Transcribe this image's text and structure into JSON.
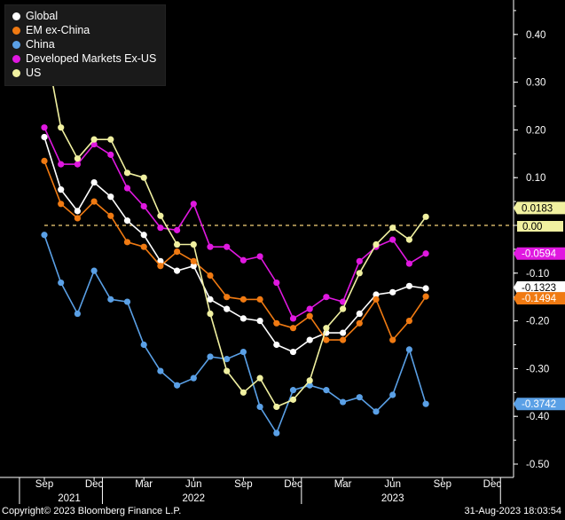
{
  "chart_data": {
    "type": "line",
    "x": [
      "Sep 2021",
      "Oct 2021",
      "Nov 2021",
      "Dec 2021",
      "Jan 2022",
      "Feb 2022",
      "Mar 2022",
      "Apr 2022",
      "May 2022",
      "Jun 2022",
      "Jul 2022",
      "Aug 2022",
      "Sep 2022",
      "Oct 2022",
      "Nov 2022",
      "Dec 2022",
      "Jan 2023",
      "Feb 2023",
      "Mar 2023",
      "Apr 2023",
      "May 2023",
      "Jun 2023",
      "Jul 2023",
      "Aug 2023"
    ],
    "x_ticks": [
      {
        "label": "Sep",
        "index": 0
      },
      {
        "label": "Dec",
        "index": 3
      },
      {
        "label": "Mar",
        "index": 6
      },
      {
        "label": "Jun",
        "index": 9
      },
      {
        "label": "Sep",
        "index": 12
      },
      {
        "label": "Dec",
        "index": 15
      },
      {
        "label": "Mar",
        "index": 18
      },
      {
        "label": "Jun",
        "index": 21
      },
      {
        "label": "Sep",
        "index": 24
      },
      {
        "label": "Dec",
        "index": 27
      }
    ],
    "year_labels": [
      {
        "label": "2021",
        "index": 1.5
      },
      {
        "label": "2022",
        "index": 9
      },
      {
        "label": "2023",
        "index": 21
      }
    ],
    "ylim": [
      -0.52,
      0.47
    ],
    "yticks": [
      0.4,
      0.3,
      0.2,
      0.1,
      0.0,
      -0.1,
      -0.2,
      -0.3,
      -0.4,
      -0.5
    ],
    "ytick_labels": [
      "0.40",
      "0.30",
      "0.20",
      "0.10",
      "0.00",
      "-0.10",
      "-0.20",
      "-0.30",
      "-0.40",
      "-0.50"
    ],
    "reference_line": 0.0,
    "series": [
      {
        "name": "Global",
        "color": "#ffffff",
        "values": [
          0.185,
          0.075,
          0.03,
          0.09,
          0.06,
          0.01,
          -0.02,
          -0.075,
          -0.095,
          -0.085,
          -0.155,
          -0.175,
          -0.195,
          -0.2,
          -0.25,
          -0.265,
          -0.24,
          -0.225,
          -0.225,
          -0.185,
          -0.145,
          -0.14,
          -0.127,
          -0.132
        ],
        "end_label": "-0.1323"
      },
      {
        "name": "EM ex-China",
        "color": "#f07a12",
        "values": [
          0.135,
          0.045,
          0.015,
          0.05,
          0.02,
          -0.035,
          -0.045,
          -0.085,
          -0.055,
          -0.075,
          -0.105,
          -0.15,
          -0.155,
          -0.155,
          -0.205,
          -0.215,
          -0.19,
          -0.24,
          -0.24,
          -0.205,
          -0.155,
          -0.24,
          -0.2,
          -0.149
        ],
        "end_label": "-0.1494"
      },
      {
        "name": "China",
        "color": "#5aa0e6",
        "values": [
          -0.02,
          -0.12,
          -0.185,
          -0.095,
          -0.155,
          -0.16,
          -0.25,
          -0.305,
          -0.335,
          -0.32,
          -0.275,
          -0.28,
          -0.265,
          -0.38,
          -0.435,
          -0.345,
          -0.335,
          -0.345,
          -0.37,
          -0.36,
          -0.39,
          -0.355,
          -0.26,
          -0.374
        ],
        "end_label": "-0.3742"
      },
      {
        "name": "Developed Markets Ex-US",
        "color": "#e018e0",
        "values": [
          0.205,
          0.128,
          0.128,
          0.17,
          0.148,
          0.078,
          0.04,
          -0.005,
          -0.01,
          0.045,
          -0.045,
          -0.045,
          -0.073,
          -0.065,
          -0.12,
          -0.195,
          -0.175,
          -0.15,
          -0.16,
          -0.075,
          -0.045,
          -0.03,
          -0.08,
          -0.059
        ],
        "end_label": "-0.0594"
      },
      {
        "name": "US",
        "color": "#f0f0a0",
        "values": [
          0.39,
          0.205,
          0.14,
          0.18,
          0.18,
          0.11,
          0.1,
          0.02,
          -0.04,
          -0.04,
          -0.185,
          -0.305,
          -0.35,
          -0.32,
          -0.38,
          -0.365,
          -0.325,
          -0.215,
          -0.175,
          -0.1,
          -0.04,
          -0.005,
          -0.03,
          0.018
        ],
        "end_label": "0.0183"
      }
    ]
  },
  "legend": {
    "items": [
      {
        "label": "Global",
        "color": "#ffffff"
      },
      {
        "label": "EM ex-China",
        "color": "#f07a12"
      },
      {
        "label": "China",
        "color": "#5aa0e6"
      },
      {
        "label": "Developed Markets Ex-US",
        "color": "#e018e0"
      },
      {
        "label": "US",
        "color": "#f0f0a0"
      }
    ]
  },
  "footer": {
    "copyright": "Copyright© 2023 Bloomberg Finance L.P.",
    "timestamp": "31-Aug-2023 18:03:54"
  }
}
